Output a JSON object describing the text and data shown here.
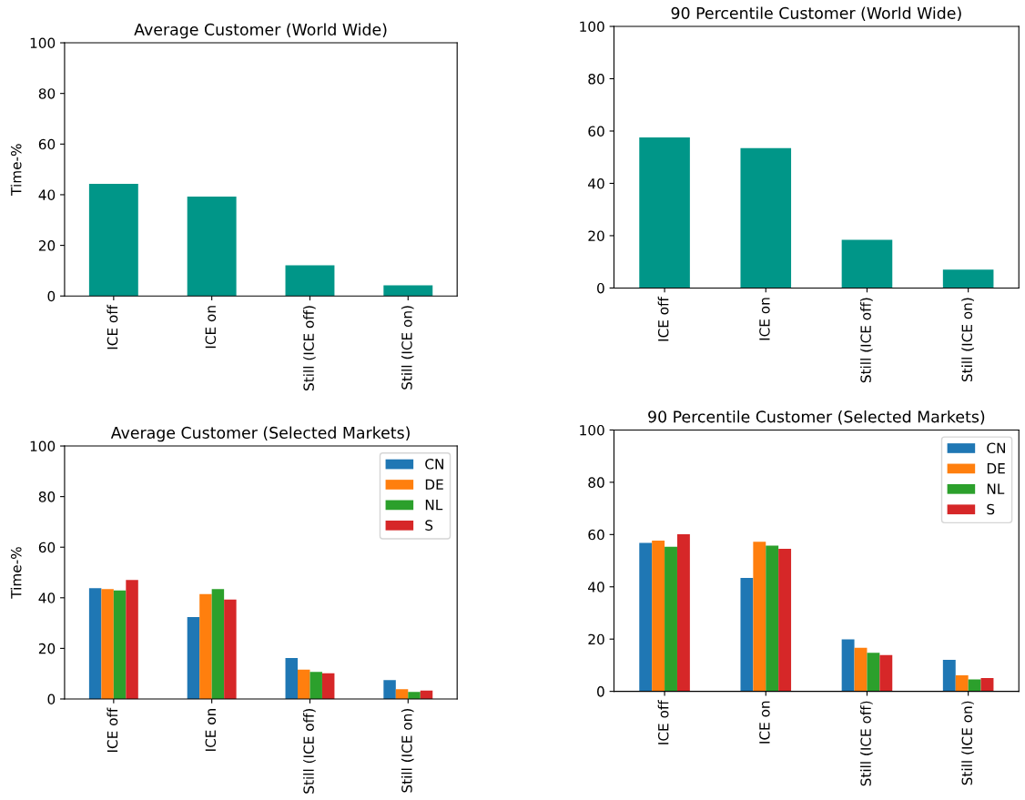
{
  "chart_data": [
    {
      "type": "bar",
      "title": "Average Customer (World Wide)",
      "ylabel": "Time-%",
      "categories": [
        "ICE off",
        "ICE on",
        "Still (ICE off)",
        "Still (ICE on)"
      ],
      "values": [
        44.3,
        39.3,
        12.1,
        4.2
      ],
      "color": "#009688",
      "ylim": [
        0,
        100
      ],
      "yticks": [
        0,
        20,
        40,
        60,
        80,
        100
      ],
      "legend": false
    },
    {
      "type": "bar",
      "title": "90 Percentile Customer (World Wide)",
      "categories": [
        "ICE off",
        "ICE on",
        "Still (ICE off)",
        "Still (ICE on)"
      ],
      "values": [
        57.6,
        53.5,
        18.4,
        7.0
      ],
      "color": "#009688",
      "ylim": [
        0,
        100
      ],
      "yticks": [
        0,
        20,
        40,
        60,
        80,
        100
      ],
      "legend": false
    },
    {
      "type": "bar",
      "title": "Average Customer (Selected Markets)",
      "ylabel": "Time-%",
      "categories": [
        "ICE off",
        "ICE on",
        "Still (ICE off)",
        "Still (ICE on)"
      ],
      "series": [
        {
          "name": "CN",
          "color": "#1f77b4",
          "values": [
            43.8,
            32.4,
            16.2,
            7.5
          ]
        },
        {
          "name": "DE",
          "color": "#ff7f0e",
          "values": [
            43.4,
            41.5,
            11.6,
            3.9
          ]
        },
        {
          "name": "NL",
          "color": "#2ca02c",
          "values": [
            42.9,
            43.4,
            10.7,
            2.8
          ]
        },
        {
          "name": "S",
          "color": "#d62728",
          "values": [
            47.0,
            39.3,
            10.2,
            3.3
          ]
        }
      ],
      "ylim": [
        0,
        100
      ],
      "yticks": [
        0,
        20,
        40,
        60,
        80,
        100
      ],
      "legend": "top right"
    },
    {
      "type": "bar",
      "title": "90 Percentile Customer (Selected Markets)",
      "categories": [
        "ICE off",
        "ICE on",
        "Still (ICE off)",
        "Still (ICE on)"
      ],
      "series": [
        {
          "name": "CN",
          "color": "#1f77b4",
          "values": [
            56.8,
            43.4,
            19.9,
            12.1
          ]
        },
        {
          "name": "DE",
          "color": "#ff7f0e",
          "values": [
            57.7,
            57.2,
            16.7,
            6.1
          ]
        },
        {
          "name": "NL",
          "color": "#2ca02c",
          "values": [
            55.3,
            55.8,
            14.8,
            4.6
          ]
        },
        {
          "name": "S",
          "color": "#d62728",
          "values": [
            60.1,
            54.5,
            13.9,
            5.1
          ]
        }
      ],
      "ylim": [
        0,
        100
      ],
      "yticks": [
        0,
        20,
        40,
        60,
        80,
        100
      ],
      "legend": "top right"
    }
  ]
}
